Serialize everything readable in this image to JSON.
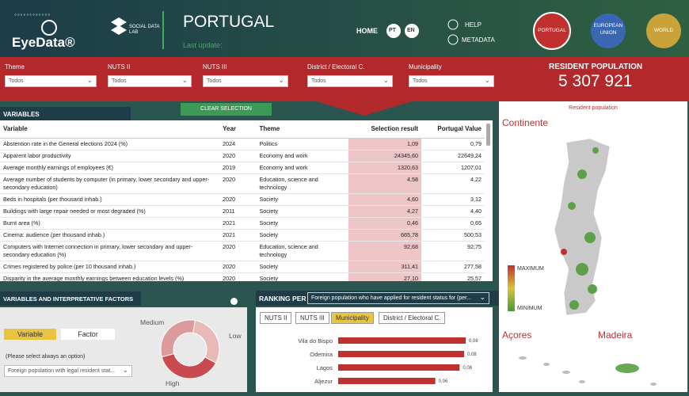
{
  "header": {
    "brand": "EyeData®",
    "lab": "SOCIAL DATA LAB",
    "title": "PORTUGAL",
    "last_update": "Last update:",
    "nav": [
      "HOME",
      "PT",
      "EN"
    ],
    "links": [
      "HELP",
      "METADATA"
    ],
    "scopes": [
      "PORTUGAL",
      "EUROPEAN UNION",
      "WORLD"
    ]
  },
  "filters": {
    "items": [
      {
        "label": "Theme",
        "value": "Todos"
      },
      {
        "label": "NUTS II",
        "value": "Todos"
      },
      {
        "label": "NUTS III",
        "value": "Todos"
      },
      {
        "label": "District / Electoral C.",
        "value": "Todos"
      },
      {
        "label": "Municipality",
        "value": "Todos"
      }
    ],
    "population_label": "RESIDENT POPULATION",
    "population": "5 307 921"
  },
  "variables": {
    "title": "VARIABLES",
    "clear": "CLEAR SELECTION",
    "columns": [
      "Variable",
      "Year",
      "Theme",
      "Selection result",
      "Portugal Value"
    ],
    "rows": [
      [
        "Abstention rate in the General elections 2024 (%)",
        "2024",
        "Politics",
        "1,09",
        "0,79"
      ],
      [
        "Apparent labor productivity",
        "2020",
        "Economy and work",
        "24345,60",
        "22649,24"
      ],
      [
        "Average monthly earnings of employees (€)",
        "2019",
        "Economy and work",
        "1320,63",
        "1207,01"
      ],
      [
        "Average number of students by computer (in primary, lower secondary and upper-secondary education)",
        "2020",
        "Education, science and technology",
        "4,58",
        "4,22"
      ],
      [
        "Beds in hospitals (per thousand inhab.)",
        "2020",
        "Society",
        "4,60",
        "3,12"
      ],
      [
        "Buildings with large repair needed or most degraded (%)",
        "2011",
        "Society",
        "4,27",
        "4,40"
      ],
      [
        "Burnt area (%)",
        "2021",
        "Society",
        "0,46",
        "0,65"
      ],
      [
        "Cinema: audience (per thousand inhab.)",
        "2021",
        "Society",
        "665,78",
        "500,53"
      ],
      [
        "Computers with Internet connection in primary, lower secondary and upper-secondary education (%)",
        "2020",
        "Education, science and technology",
        "92,68",
        "92,75"
      ],
      [
        "Crimes registered by police (per 10 thousand inhab.)",
        "2020",
        "Society",
        "311,41",
        "277,58"
      ],
      [
        "Disparity in the average monthly earnings between education levels (%)",
        "2020",
        "Society",
        "27,10",
        "25,57"
      ]
    ]
  },
  "factors": {
    "title": "VARIABLES AND INTERPRETATIVE FACTORS",
    "toggle": [
      "Variable",
      "Factor"
    ],
    "hint": "(Please select always an option)",
    "dropdown": "Foreign population with legal resident stat..."
  },
  "ranking": {
    "title": "RANKING PER",
    "dropdown": "Foreign population who have applied for resident status for (per...",
    "levels": [
      "NUTS II",
      "NUTS III",
      "Municipality",
      "District / Electoral C."
    ]
  },
  "map": {
    "title": "Resident population",
    "regions": [
      "Continente",
      "Açores",
      "Madeira"
    ],
    "legend": [
      "MAXIMUM",
      "MINIMUM"
    ]
  },
  "chart_data": [
    {
      "type": "pie",
      "donut": true,
      "categories": [
        "Low",
        "High",
        "Medium"
      ],
      "values": [
        30,
        38,
        32
      ],
      "colors": [
        "#e9b9b9",
        "#c94a4f",
        "#dc9a9c"
      ]
    },
    {
      "type": "bar",
      "orientation": "horizontal",
      "categories": [
        "Vila do Bispo",
        "Odemira",
        "Lagos",
        "Aljezur"
      ],
      "values": [
        0.084,
        0.083,
        0.08,
        0.064
      ],
      "value_labels": [
        "0,08",
        "0,08",
        "0,08",
        "0,06"
      ],
      "color": "#c0302f"
    }
  ]
}
